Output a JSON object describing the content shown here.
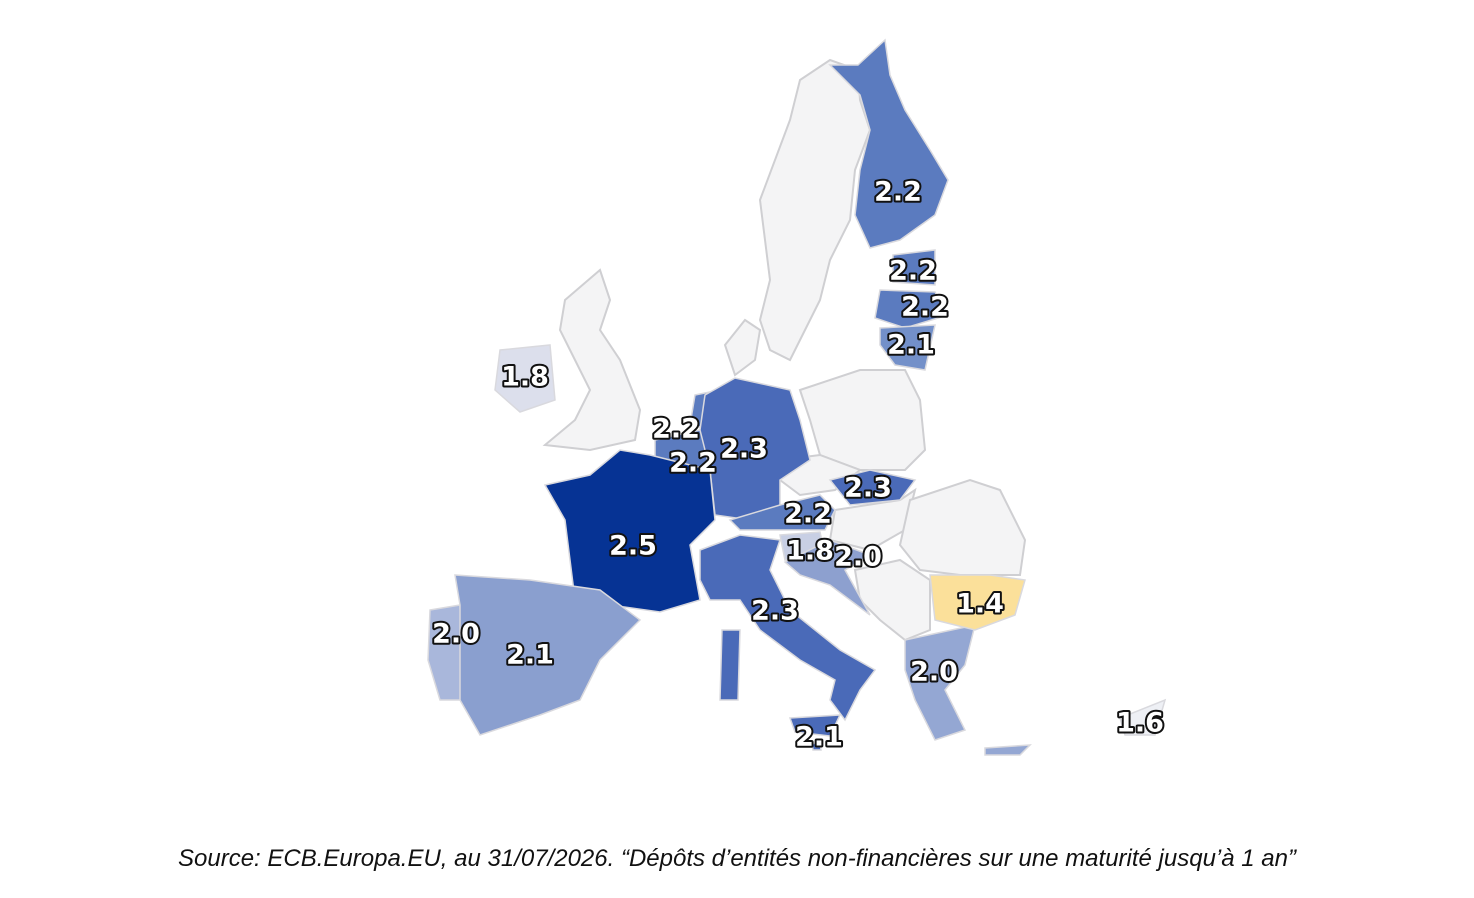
{
  "regions": [
    {
      "value": 2.2,
      "color": "#5b7bbf"
    },
    {
      "value": 2.2,
      "color": "#5b7bbf"
    },
    {
      "value": 2.2,
      "color": "#5b7bbf"
    },
    {
      "value": 2.1,
      "color": "#7390c9"
    },
    {
      "value": 1.8,
      "color": "#dcdfec"
    },
    {
      "value": 2.2,
      "color": "#5b7bbf"
    },
    {
      "value": 2.2,
      "color": "#5b7bbf"
    },
    {
      "value": 2.3,
      "color": "#4a6ab8"
    },
    {
      "value": 2.3,
      "color": "#4a6ab8"
    },
    {
      "value": 2.2,
      "color": "#5b7bbf"
    },
    {
      "value": 1.8,
      "color": "#c8cfe4"
    },
    {
      "value": 2,
      "label": "2.0",
      "color": "#8da0cf"
    },
    {
      "value": 2.5,
      "color": "#063394"
    },
    {
      "value": 2.3,
      "color": "#4a6ab8"
    },
    {
      "value": 2,
      "label": "2.0",
      "color": "#a9b7db"
    },
    {
      "value": 2.1,
      "color": "#8a9fcf"
    },
    {
      "value": 2,
      "label": "2.0",
      "color": "#94a7d3"
    },
    {
      "value": 1.4,
      "color": "#fbe09a"
    },
    {
      "value": 2.1,
      "color": "#4a6ab8"
    },
    {
      "value": 1.6,
      "color": "#eef0f5"
    }
  ],
  "source": "Source: ECB.Europa.EU, au 31/07/2026. “Dépôts d’entités non-financières sur une maturité jusqu’à 1 an”"
}
